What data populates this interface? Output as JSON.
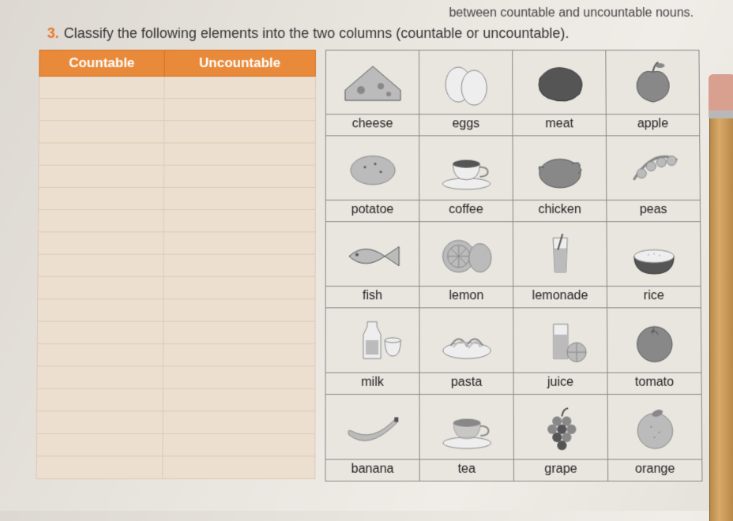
{
  "topLine": "between countable and uncountable nouns.",
  "question": {
    "number": "3.",
    "text": "Classify the following elements into the two columns (countable or uncountable)."
  },
  "classify": {
    "headers": [
      "Countable",
      "Uncountable"
    ],
    "blankRows": 18,
    "header_bg": "#e88a3a",
    "header_color": "#ffffff",
    "cell_bg": "#eddfcf",
    "border_color": "#dccab5"
  },
  "foodGrid": {
    "cols": 4,
    "cell_border": "#888888",
    "cell_bg": "#e9e6e0",
    "label_fontsize": 16,
    "label_color": "#222222",
    "rows": [
      [
        {
          "label": "cheese",
          "icon": "cheese"
        },
        {
          "label": "eggs",
          "icon": "eggs"
        },
        {
          "label": "meat",
          "icon": "meat"
        },
        {
          "label": "apple",
          "icon": "apple"
        }
      ],
      [
        {
          "label": "potatoe",
          "icon": "potato"
        },
        {
          "label": "coffee",
          "icon": "coffee"
        },
        {
          "label": "chicken",
          "icon": "chicken"
        },
        {
          "label": "peas",
          "icon": "peas"
        }
      ],
      [
        {
          "label": "fish",
          "icon": "fish"
        },
        {
          "label": "lemon",
          "icon": "lemon"
        },
        {
          "label": "lemonade",
          "icon": "lemonade"
        },
        {
          "label": "rice",
          "icon": "rice"
        }
      ],
      [
        {
          "label": "milk",
          "icon": "milk"
        },
        {
          "label": "pasta",
          "icon": "pasta"
        },
        {
          "label": "juice",
          "icon": "juice"
        },
        {
          "label": "tomato",
          "icon": "tomato"
        }
      ],
      [
        {
          "label": "banana",
          "icon": "banana"
        },
        {
          "label": "tea",
          "icon": "tea"
        },
        {
          "label": "grape",
          "icon": "grape"
        },
        {
          "label": "orange",
          "icon": "orange"
        }
      ]
    ]
  },
  "colors": {
    "accent": "#e57a2e",
    "page_bg": "#e8e4de",
    "text": "#333333"
  }
}
